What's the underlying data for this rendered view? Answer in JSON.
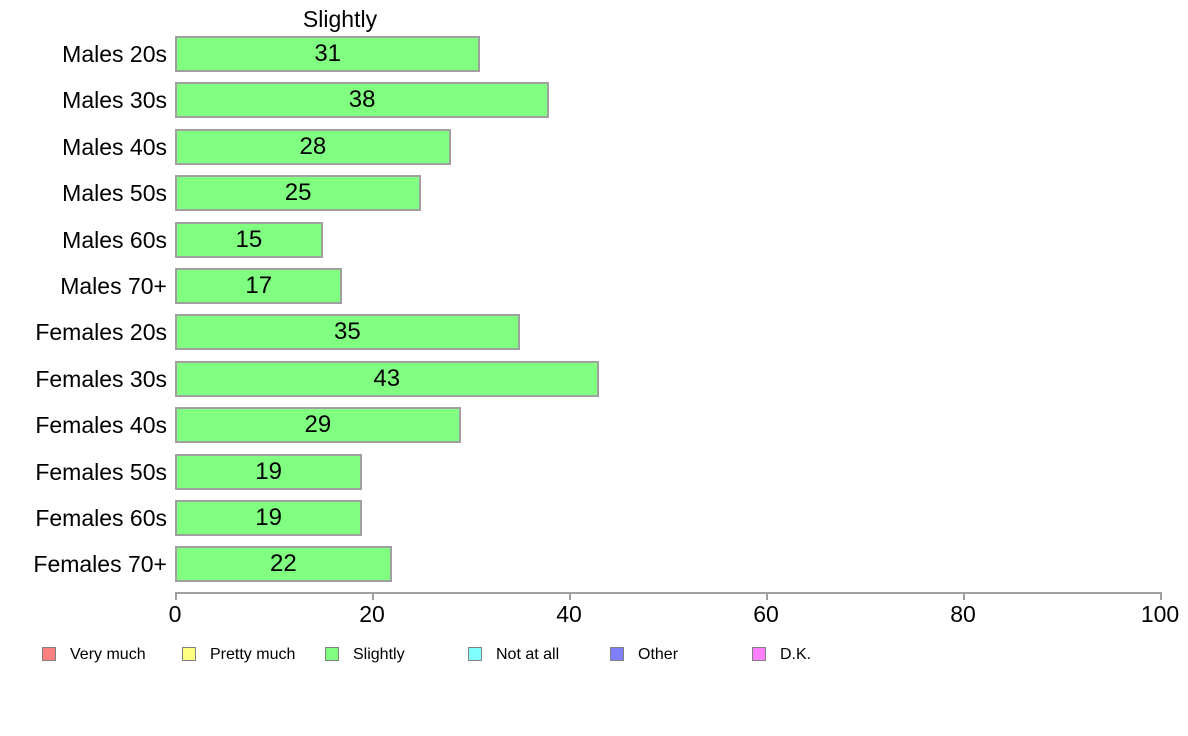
{
  "chart_data": {
    "type": "bar",
    "orientation": "horizontal",
    "title": "Slightly",
    "categories": [
      "Males 20s",
      "Males 30s",
      "Males 40s",
      "Males 50s",
      "Males 60s",
      "Males 70+",
      "Females 20s",
      "Females 30s",
      "Females 40s",
      "Females 50s",
      "Females 60s",
      "Females 70+"
    ],
    "values": [
      31,
      38,
      28,
      25,
      15,
      17,
      35,
      43,
      29,
      19,
      19,
      22
    ],
    "value_labels_inside_bars": true,
    "xlabel": "",
    "ylabel": "",
    "xlim": [
      0,
      100
    ],
    "x_ticks": [
      0,
      20,
      40,
      60,
      80,
      100
    ],
    "grid": false,
    "bar_fill_color": "#80FF80",
    "bar_border_color": "#A0A0A0",
    "axis_color": "#A0A0A0",
    "text_color": "#000000",
    "legend": {
      "position": "bottom",
      "items": [
        {
          "label": "Very much",
          "color": "#FF8080"
        },
        {
          "label": "Pretty much",
          "color": "#FFFF80"
        },
        {
          "label": "Slightly",
          "color": "#80FF80"
        },
        {
          "label": "Not at all",
          "color": "#80FFFF"
        },
        {
          "label": "Other",
          "color": "#8080FF"
        },
        {
          "label": "D.K.",
          "color": "#FF80FF"
        }
      ]
    }
  }
}
